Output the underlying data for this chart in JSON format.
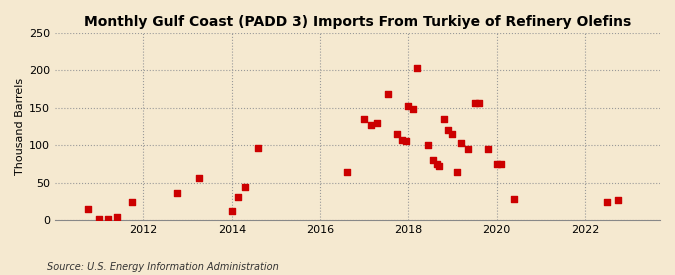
{
  "title": "Monthly Gulf Coast (PADD 3) Imports From Turkiye of Refinery Olefins",
  "ylabel": "Thousand Barrels",
  "source": "Source: U.S. Energy Information Administration",
  "background_color": "#f5e9d0",
  "marker_color": "#cc0000",
  "xlim_left": 2010.0,
  "xlim_right": 2023.7,
  "ylim_bottom": 0,
  "ylim_top": 250,
  "yticks": [
    0,
    50,
    100,
    150,
    200,
    250
  ],
  "xticks": [
    2012,
    2014,
    2016,
    2018,
    2020,
    2022
  ],
  "data_points": [
    [
      2010.75,
      15
    ],
    [
      2011.0,
      2
    ],
    [
      2011.2,
      2
    ],
    [
      2011.4,
      4
    ],
    [
      2011.75,
      25
    ],
    [
      2012.75,
      37
    ],
    [
      2013.25,
      57
    ],
    [
      2014.0,
      13
    ],
    [
      2014.15,
      31
    ],
    [
      2014.3,
      45
    ],
    [
      2014.6,
      96
    ],
    [
      2016.6,
      65
    ],
    [
      2017.0,
      135
    ],
    [
      2017.15,
      127
    ],
    [
      2017.3,
      130
    ],
    [
      2017.55,
      168
    ],
    [
      2017.75,
      115
    ],
    [
      2017.85,
      107
    ],
    [
      2017.95,
      106
    ],
    [
      2018.0,
      152
    ],
    [
      2018.1,
      148
    ],
    [
      2018.2,
      203
    ],
    [
      2018.45,
      101
    ],
    [
      2018.55,
      80
    ],
    [
      2018.65,
      75
    ],
    [
      2018.7,
      72
    ],
    [
      2018.8,
      135
    ],
    [
      2018.9,
      120
    ],
    [
      2019.0,
      115
    ],
    [
      2019.1,
      65
    ],
    [
      2019.2,
      103
    ],
    [
      2019.35,
      95
    ],
    [
      2019.5,
      157
    ],
    [
      2019.6,
      157
    ],
    [
      2019.8,
      95
    ],
    [
      2020.0,
      75
    ],
    [
      2020.1,
      75
    ],
    [
      2020.4,
      29
    ],
    [
      2022.5,
      25
    ],
    [
      2022.75,
      27
    ]
  ]
}
